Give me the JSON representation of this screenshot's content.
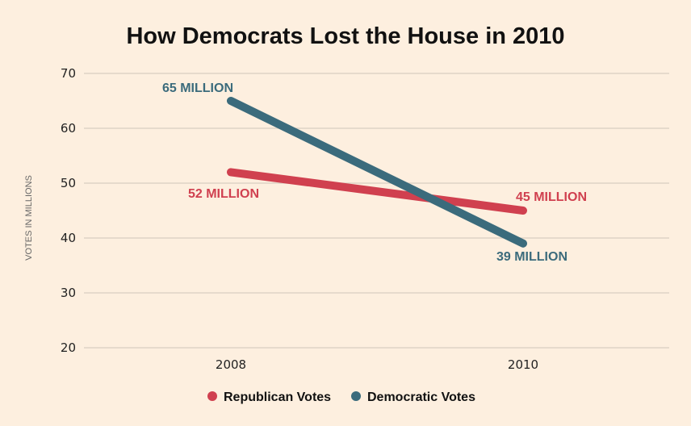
{
  "chart_data": {
    "type": "line",
    "title": "How Democrats Lost the House in 2010",
    "xlabel": "",
    "ylabel": "VOTES IN MILLIONS",
    "categories": [
      "2008",
      "2010"
    ],
    "ylim": [
      20,
      70
    ],
    "yticks": [
      "70",
      "60",
      "50",
      "40",
      "30",
      "20"
    ],
    "grid": true,
    "legend_position": "bottom",
    "series": [
      {
        "name": "Republican Votes",
        "color": "#d0404f",
        "values": [
          52,
          45
        ],
        "labels": [
          "52 MILLION",
          "45 MILLION"
        ]
      },
      {
        "name": "Democratic Votes",
        "color": "#3b6b7c",
        "values": [
          65,
          39
        ],
        "labels": [
          "65 MILLION",
          "39 MILLION"
        ]
      }
    ]
  }
}
